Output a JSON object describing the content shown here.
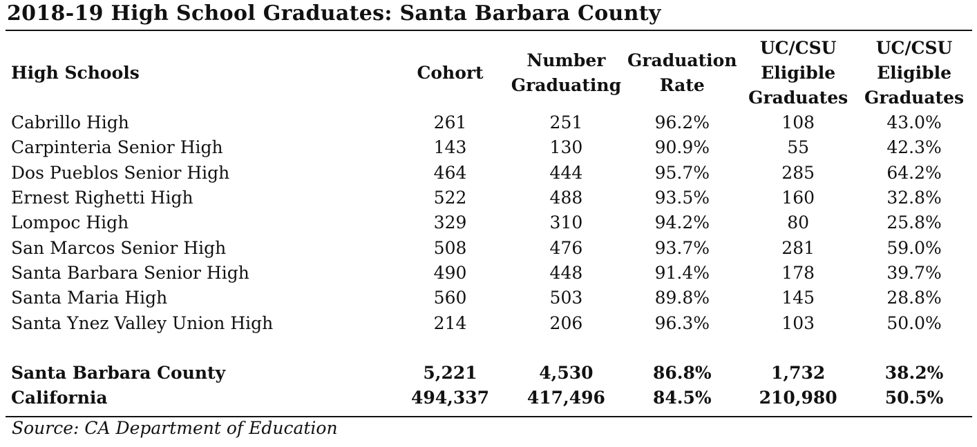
{
  "title": "2018-19 High School Graduates: Santa Barbara County",
  "table": {
    "headers": [
      "High Schools",
      "Cohort",
      "Number\nGraduating",
      "Graduation\nRate",
      "UC/CSU\nEligible\nGraduates",
      "UC/CSU\nEligible\nGraduates"
    ],
    "rows": [
      {
        "school": "Cabrillo High",
        "cohort": "261",
        "graduating": "251",
        "rate": "96.2%",
        "eligible": "108",
        "eligible_pct": "43.0%"
      },
      {
        "school": "Carpinteria Senior High",
        "cohort": "143",
        "graduating": "130",
        "rate": "90.9%",
        "eligible": "55",
        "eligible_pct": "42.3%"
      },
      {
        "school": "Dos Pueblos Senior High",
        "cohort": "464",
        "graduating": "444",
        "rate": "95.7%",
        "eligible": "285",
        "eligible_pct": "64.2%"
      },
      {
        "school": "Ernest Righetti High",
        "cohort": "522",
        "graduating": "488",
        "rate": "93.5%",
        "eligible": "160",
        "eligible_pct": "32.8%"
      },
      {
        "school": "Lompoc High",
        "cohort": "329",
        "graduating": "310",
        "rate": "94.2%",
        "eligible": "80",
        "eligible_pct": "25.8%"
      },
      {
        "school": "San Marcos Senior High",
        "cohort": "508",
        "graduating": "476",
        "rate": "93.7%",
        "eligible": "281",
        "eligible_pct": "59.0%"
      },
      {
        "school": "Santa Barbara Senior High",
        "cohort": "490",
        "graduating": "448",
        "rate": "91.4%",
        "eligible": "178",
        "eligible_pct": "39.7%"
      },
      {
        "school": "Santa Maria High",
        "cohort": "560",
        "graduating": "503",
        "rate": "89.8%",
        "eligible": "145",
        "eligible_pct": "28.8%"
      },
      {
        "school": "Santa Ynez Valley Union High",
        "cohort": "214",
        "graduating": "206",
        "rate": "96.3%",
        "eligible": "103",
        "eligible_pct": "50.0%"
      }
    ],
    "summary": [
      {
        "school": "Santa Barbara County",
        "cohort": "5,221",
        "graduating": "4,530",
        "rate": "86.8%",
        "eligible": "1,732",
        "eligible_pct": "38.2%"
      },
      {
        "school": "California",
        "cohort": "494,337",
        "graduating": "417,496",
        "rate": "84.5%",
        "eligible": "210,980",
        "eligible_pct": "50.5%"
      }
    ]
  },
  "source": "Source: CA Department of Education"
}
